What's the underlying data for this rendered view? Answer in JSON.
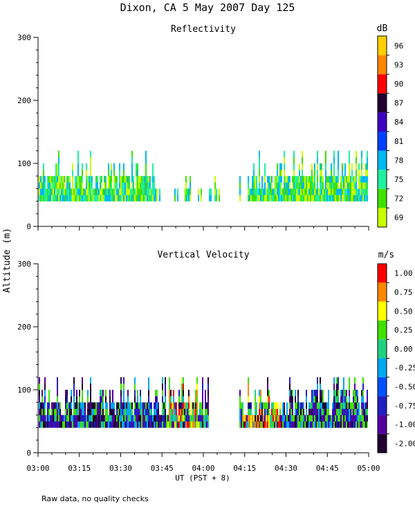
{
  "title": "Dixon, CA  5 May 2007  Day 125",
  "footer_note": "Raw data, no quality checks",
  "chart_data": [
    {
      "type": "heatmap",
      "title": "Reflectivity",
      "xlabel": "UT  (PST + 8)",
      "ylabel": "Altitude (m)",
      "x_tick_labels": [
        "03:00",
        "03:15",
        "03:30",
        "03:45",
        "04:00",
        "04:15",
        "04:30",
        "04:45",
        "05:00"
      ],
      "x_range_minutes": [
        0,
        120
      ],
      "y_ticks": [
        0,
        100,
        200,
        300
      ],
      "ylim": [
        0,
        300
      ],
      "colorbar": {
        "unit": "dB",
        "levels": [
          "69",
          "72",
          "75",
          "78",
          "81",
          "84",
          "87",
          "90",
          "93",
          "96"
        ],
        "colors": [
          "#c8ff00",
          "#40e000",
          "#20f0a0",
          "#00b8f0",
          "#0040ff",
          "#4000c0",
          "#200030",
          "#ff0000",
          "#ff8800",
          "#ffd000"
        ]
      },
      "echo_profile": {
        "base_altitude_m": 40,
        "typical_top_m": [
          80,
          100
        ],
        "max_top_m": 120,
        "dominant_colors": [
          "#40e000",
          "#20f0a0",
          "#c8ff00",
          "#00b8f0"
        ],
        "gaps_minutes": [
          [
            44,
            48
          ],
          [
            66,
            73
          ],
          [
            74,
            76
          ]
        ],
        "dense_intervals_minutes": [
          [
            0,
            42
          ],
          [
            77,
            120
          ]
        ],
        "sparse_intervals_minutes": [
          [
            42,
            77
          ]
        ]
      }
    },
    {
      "type": "heatmap",
      "title": "Vertical Velocity",
      "xlabel": "UT  (PST + 8)",
      "ylabel": "Altitude (m)",
      "x_tick_labels": [
        "03:00",
        "03:15",
        "03:30",
        "03:45",
        "04:00",
        "04:15",
        "04:30",
        "04:45",
        "05:00"
      ],
      "x_range_minutes": [
        0,
        120
      ],
      "y_ticks": [
        0,
        100,
        200,
        300
      ],
      "ylim": [
        0,
        300
      ],
      "colorbar": {
        "unit": "m/s",
        "levels": [
          "-2.00",
          "-1.00",
          "-0.75",
          "-0.50",
          "-0.25",
          "0.00",
          "0.25",
          "0.50",
          "0.75",
          "1.00"
        ],
        "colors": [
          "#200030",
          "#5000a0",
          "#2020c0",
          "#0050ff",
          "#00a8f0",
          "#20d080",
          "#40e000",
          "#ffff00",
          "#ff8800",
          "#ff0000"
        ]
      },
      "echo_profile": {
        "base_altitude_m": 40,
        "typical_top_m": [
          80,
          100
        ],
        "max_top_m": 120,
        "dominant_colors": [
          "#200030",
          "#2020c0",
          "#5000a0",
          "#00a8f0",
          "#40e000"
        ],
        "mixed_colors": [
          "#40e000",
          "#ffff00",
          "#ff8800",
          "#ff0000",
          "#20d080"
        ],
        "mixed_intervals_minutes": [
          [
            46,
            58
          ],
          [
            74,
            88
          ]
        ],
        "gaps_minutes": [
          [
            62,
            66
          ],
          [
            66,
            73
          ]
        ]
      }
    }
  ]
}
